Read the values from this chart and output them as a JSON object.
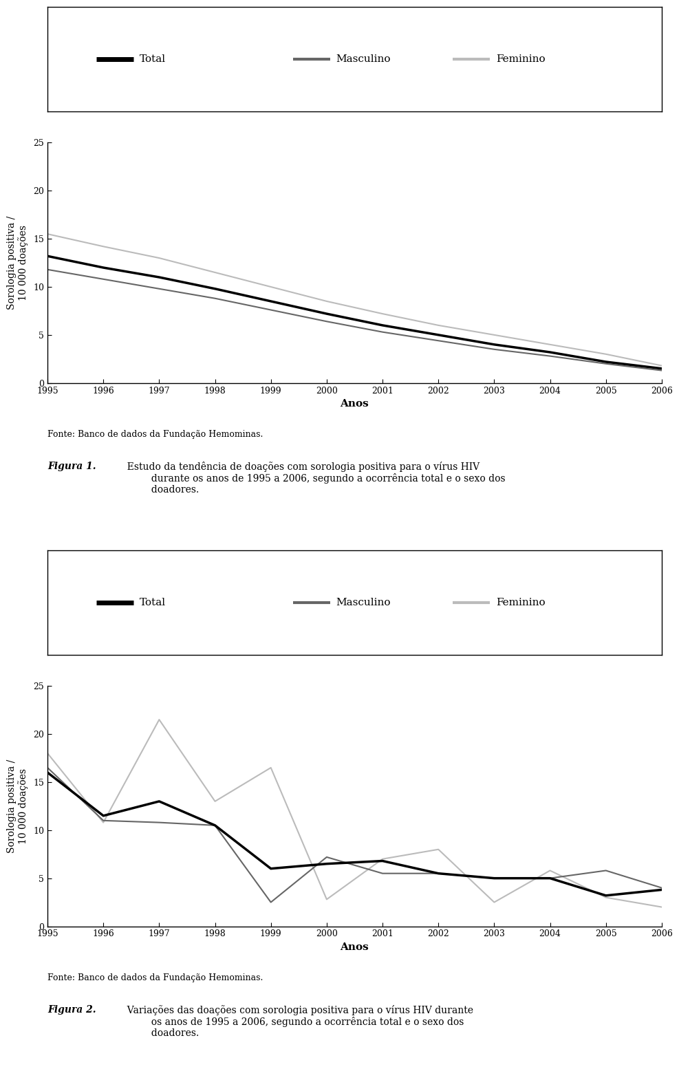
{
  "years": [
    1995,
    1996,
    1997,
    1998,
    1999,
    2000,
    2001,
    2002,
    2003,
    2004,
    2005,
    2006
  ],
  "fig1": {
    "total": [
      13.2,
      12.0,
      11.0,
      9.8,
      8.5,
      7.2,
      6.0,
      5.0,
      4.0,
      3.2,
      2.2,
      1.5
    ],
    "masculino": [
      11.8,
      10.8,
      9.8,
      8.8,
      7.6,
      6.4,
      5.3,
      4.4,
      3.5,
      2.8,
      2.0,
      1.3
    ],
    "feminino": [
      15.5,
      14.2,
      13.0,
      11.5,
      10.0,
      8.5,
      7.2,
      6.0,
      5.0,
      4.0,
      3.0,
      1.8
    ]
  },
  "fig2": {
    "total": [
      16.0,
      11.5,
      13.0,
      10.5,
      6.0,
      6.5,
      6.8,
      5.5,
      5.0,
      5.0,
      3.2,
      3.8
    ],
    "masculino": [
      16.5,
      11.0,
      10.8,
      10.5,
      2.5,
      7.2,
      5.5,
      5.5,
      5.0,
      5.0,
      5.8,
      4.0
    ],
    "feminino": [
      18.0,
      10.8,
      21.5,
      13.0,
      16.5,
      2.8,
      7.0,
      8.0,
      2.5,
      5.8,
      3.0,
      2.0
    ]
  },
  "colors": {
    "total": "#000000",
    "masculino": "#666666",
    "feminino": "#bbbbbb"
  },
  "linewidths": {
    "total": 2.5,
    "masculino": 1.5,
    "feminino": 1.5
  },
  "ylabel": "Sorologia positiva /\n10 000 doações",
  "xlabel": "Anos",
  "ylim": [
    0,
    25
  ],
  "yticks": [
    0,
    5,
    10,
    15,
    20,
    25
  ],
  "legend_labels": [
    "Total",
    "Masculino",
    "Feminino"
  ],
  "fonte_text": "Fonte: Banco de dados da Fundação Hemominas.",
  "fig1_caption_bold": "Figura 1.",
  "fig1_caption": "  Estudo da tendência de doações com sorologia positiva para o vírus HIV\n          durante os anos de 1995 a 2006, segundo a ocorrência total e o sexo dos\n          doadores.",
  "fig2_caption_bold": "Figura 2.",
  "fig2_caption": "  Variações das doações com sorologia positiva para o vírus HIV durante\n          os anos de 1995 a 2006, segundo a ocorrência total e o sexo dos\n          doadores.",
  "background_color": "#ffffff",
  "text_color": "#000000"
}
